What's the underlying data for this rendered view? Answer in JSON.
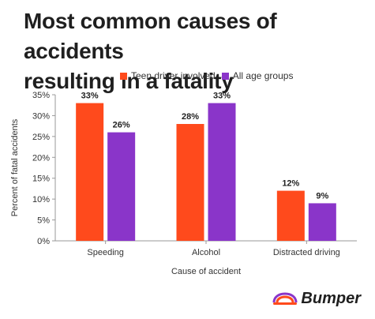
{
  "title_line1": "Most common causes of accidents",
  "title_line2": "resulting in a fatality",
  "logo_text": "Bumper",
  "colors": {
    "teen": "#FF4A1C",
    "all": "#8A35C9",
    "axis": "#999999",
    "grid": "#dddddd"
  },
  "chart_data": {
    "type": "bar",
    "categories": [
      "Speeding",
      "Alcohol",
      "Distracted driving"
    ],
    "series": [
      {
        "name": "Teen driver involved",
        "values": [
          33,
          28,
          12
        ]
      },
      {
        "name": "All age groups",
        "values": [
          26,
          33,
          9
        ]
      }
    ],
    "value_labels": [
      [
        "33%",
        "28%",
        "12%"
      ],
      [
        "26%",
        "33%",
        "9%"
      ]
    ],
    "yticks": [
      "0%",
      "5%",
      "10%",
      "15%",
      "20%",
      "25%",
      "30%",
      "35%"
    ],
    "xlabel": "Cause of accident",
    "ylabel": "Percent of fatal accidents",
    "ylim": [
      0,
      35
    ],
    "grid": false,
    "legend_position": "top"
  }
}
